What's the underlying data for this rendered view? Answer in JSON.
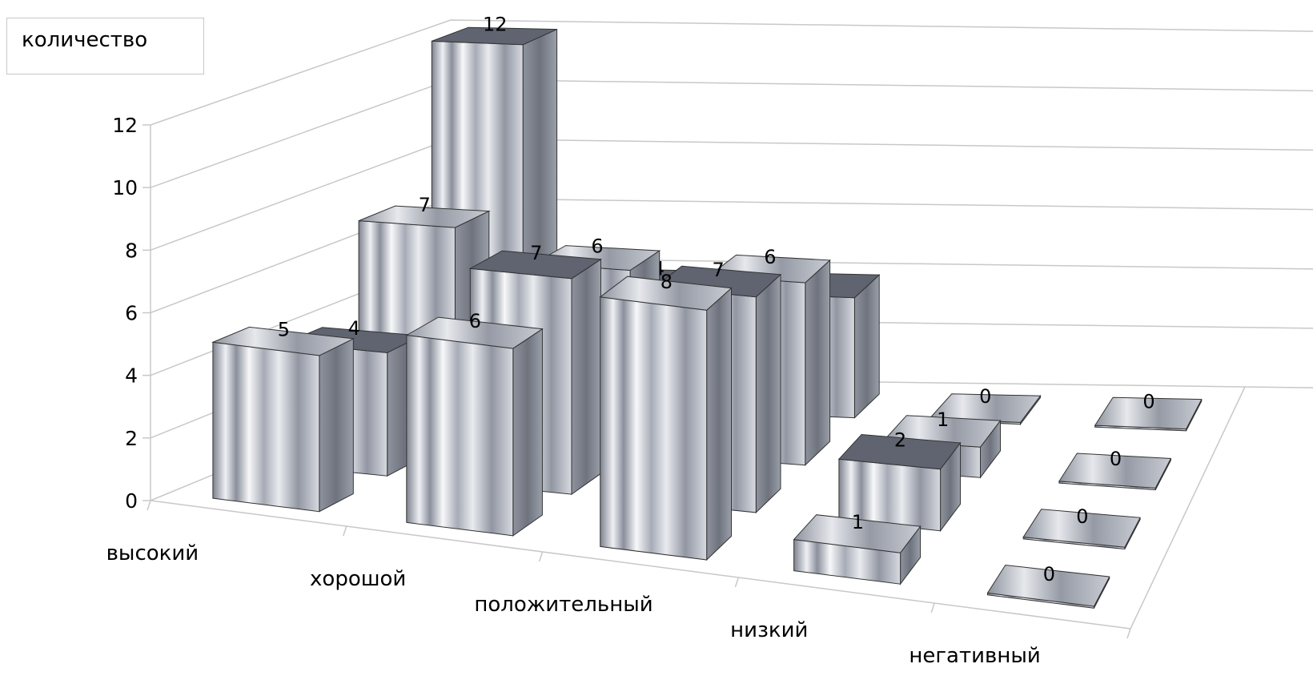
{
  "chart_data": {
    "type": "bar",
    "subtype": "3d-column",
    "legend": {
      "position": "top-left",
      "entries": [
        "количество"
      ]
    },
    "categories": [
      "высокий",
      "хорошой",
      "положительный",
      "низкий",
      "негативный"
    ],
    "series": [
      {
        "values": [
          5,
          6,
          8,
          1,
          0
        ]
      },
      {
        "values": [
          4,
          7,
          7,
          2,
          0
        ]
      },
      {
        "values": [
          7,
          6,
          6,
          1,
          0
        ]
      },
      {
        "values": [
          12,
          4,
          4,
          0,
          0
        ]
      }
    ],
    "yticks": [
      "0",
      "2",
      "4",
      "6",
      "8",
      "10",
      "12"
    ],
    "ylim": [
      0,
      12
    ],
    "grid": true,
    "colors": {
      "bar_light": "#f4f5f8",
      "bar_mid": "#9ea3b0",
      "bar_dark": "#5f6470",
      "grid": "#c8c8c8"
    }
  }
}
